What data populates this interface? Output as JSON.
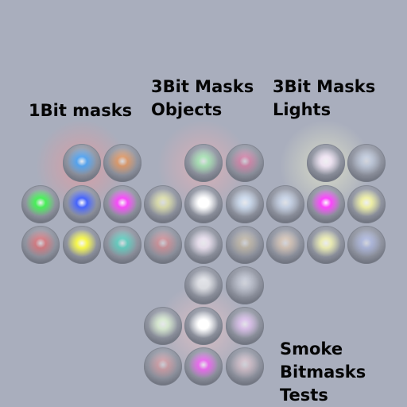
{
  "labels": {
    "one_bit": "1Bit masks",
    "three_bit_objects": [
      "3Bit Masks",
      "Objects"
    ],
    "three_bit_lights": [
      "3Bit Masks",
      "Lights"
    ],
    "smoke": [
      "Smoke",
      "Bitmasks",
      "Tests"
    ]
  },
  "colors": {
    "background": "#a9aebd",
    "sphere_base": "#8a8e9a",
    "text": "#050505"
  },
  "groups": [
    {
      "name": "one-bit",
      "spheres": [
        {
          "id": "ob-1",
          "tint": "#3aa0ff",
          "lit": 0.75,
          "glow": "#ff9090"
        },
        {
          "id": "ob-2",
          "tint": "#ff8a30",
          "lit": 0.55
        },
        {
          "id": "ob-3",
          "tint": "#30ff40",
          "lit": 0.8
        },
        {
          "id": "ob-4",
          "tint": "#4060ff",
          "lit": 0.95
        },
        {
          "id": "ob-5",
          "tint": "#ff40ff",
          "lit": 0.9
        },
        {
          "id": "ob-6",
          "tint": "#ff4040",
          "lit": 0.45
        },
        {
          "id": "ob-7",
          "tint": "#ffff40",
          "lit": 0.9
        },
        {
          "id": "ob-8",
          "tint": "#30e0c0",
          "lit": 0.55
        }
      ]
    },
    {
      "name": "three-bit-objects",
      "spheres": [
        {
          "id": "tbo-1",
          "tint": "#a8ffb0",
          "lit": 0.6,
          "glow": "#ffb0b0"
        },
        {
          "id": "tbo-2",
          "tint": "#ff5090",
          "lit": 0.4
        },
        {
          "id": "tbo-3",
          "tint": "#ffffa0",
          "lit": 0.55
        },
        {
          "id": "tbo-4",
          "tint": "#ffffff",
          "lit": 1.0
        },
        {
          "id": "tbo-5",
          "tint": "#d8eaff",
          "lit": 0.7
        },
        {
          "id": "tbo-6",
          "tint": "#ff6060",
          "lit": 0.35
        },
        {
          "id": "tbo-7",
          "tint": "#fff0ff",
          "lit": 0.7
        },
        {
          "id": "tbo-8",
          "tint": "#d8c090",
          "lit": 0.4
        }
      ]
    },
    {
      "name": "three-bit-lights",
      "spheres": [
        {
          "id": "tbl-1",
          "tint": "#fff0ff",
          "lit": 0.8,
          "glow": "#ffffd0"
        },
        {
          "id": "tbl-2",
          "tint": "#d8e8ff",
          "lit": 0.45
        },
        {
          "id": "tbl-3",
          "tint": "#d8e8ff",
          "lit": 0.6
        },
        {
          "id": "tbl-4",
          "tint": "#ff40ff",
          "lit": 0.95
        },
        {
          "id": "tbl-5",
          "tint": "#ffffa0",
          "lit": 0.8
        },
        {
          "id": "tbl-6",
          "tint": "#ffd8b0",
          "lit": 0.45
        },
        {
          "id": "tbl-7",
          "tint": "#ffffb0",
          "lit": 0.75
        },
        {
          "id": "tbl-8",
          "tint": "#b0c0ff",
          "lit": 0.45
        }
      ]
    },
    {
      "name": "smoke",
      "spheres": [
        {
          "id": "sm-1",
          "tint": "#ffffff",
          "lit": 0.6
        },
        {
          "id": "sm-2",
          "tint": "#e0e4f0",
          "lit": 0.4
        },
        {
          "id": "sm-3",
          "tint": "#e8ffd8",
          "lit": 0.7
        },
        {
          "id": "sm-4",
          "tint": "#ffffff",
          "lit": 1.0,
          "glow": "#ffc8c8"
        },
        {
          "id": "sm-5",
          "tint": "#f0c8ff",
          "lit": 0.65
        },
        {
          "id": "sm-6",
          "tint": "#ff8080",
          "lit": 0.35
        },
        {
          "id": "sm-7",
          "tint": "#ff50ff",
          "lit": 0.7
        },
        {
          "id": "sm-8",
          "tint": "#ffd0d8",
          "lit": 0.4
        }
      ]
    }
  ]
}
